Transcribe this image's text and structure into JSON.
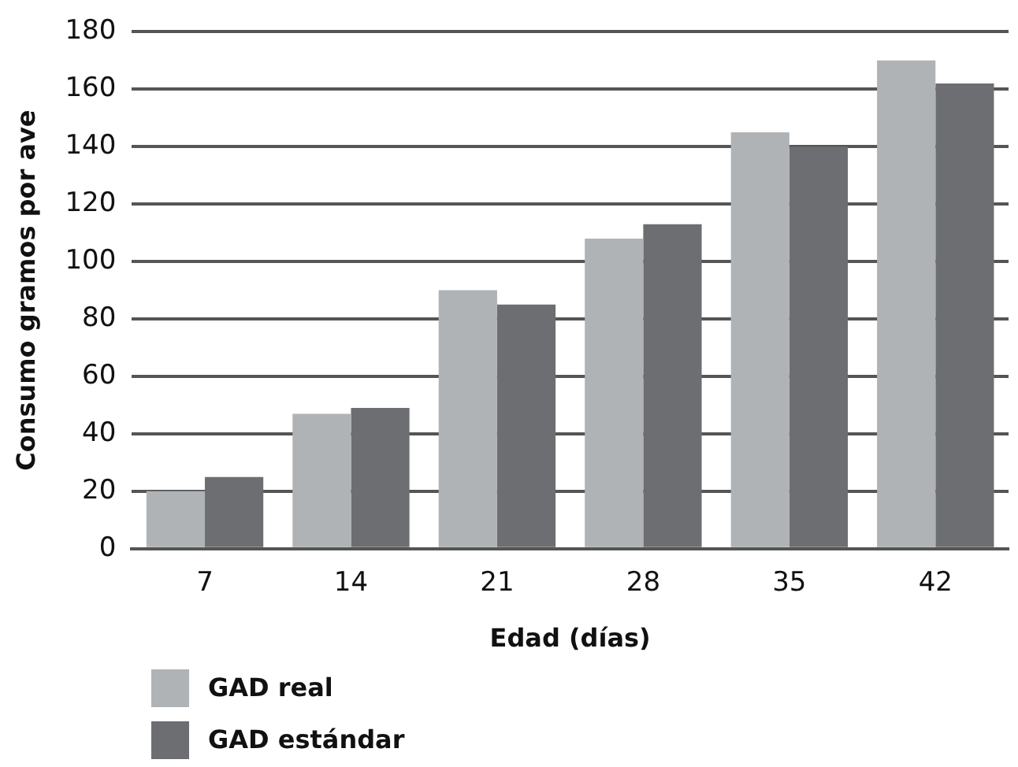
{
  "chart_data": {
    "type": "bar",
    "xlabel": "Edad (días)",
    "ylabel": "Consumo gramos por ave",
    "categories": [
      "7",
      "14",
      "21",
      "28",
      "35",
      "42"
    ],
    "series": [
      {
        "name": "GAD real",
        "color": "#b0b3b5",
        "values": [
          20,
          47,
          90,
          108,
          145,
          170
        ]
      },
      {
        "name": "GAD estándar",
        "color": "#6d6e71",
        "values": [
          25,
          49,
          85,
          113,
          140,
          162
        ]
      }
    ],
    "ylim": [
      0,
      180
    ],
    "yticks": [
      0,
      20,
      40,
      60,
      80,
      100,
      120,
      140,
      160,
      180
    ],
    "grid": "y",
    "legend": "bottom left"
  }
}
